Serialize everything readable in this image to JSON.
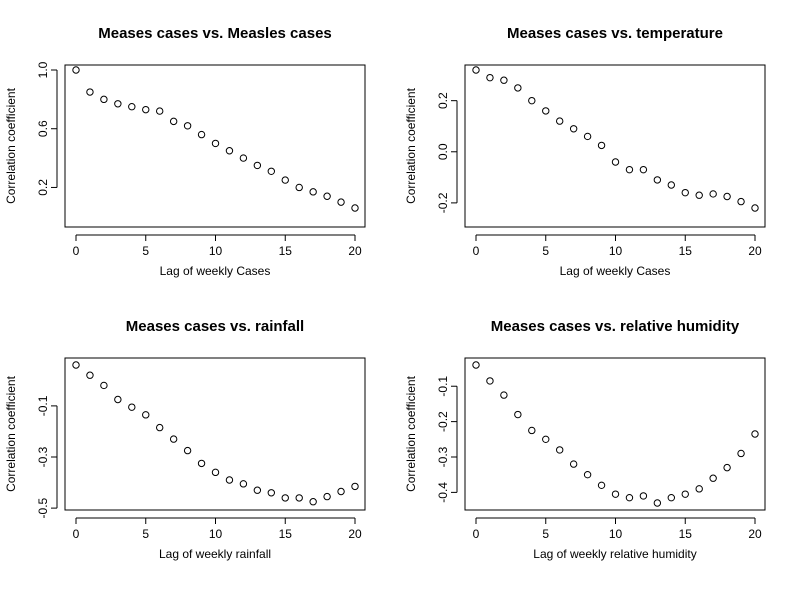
{
  "chart_data": [
    {
      "type": "scatter",
      "title": "Meases cases vs. Measles cases",
      "xlabel": "Lag of weekly Cases",
      "ylabel": "Correlation coefficient",
      "xlim": [
        0,
        20
      ],
      "ylim": [
        0.06,
        1.0
      ],
      "xticks": [
        0,
        5,
        10,
        15,
        20
      ],
      "yticks": [
        0.2,
        0.6,
        1.0
      ],
      "ytick_labels": [
        "0.2",
        "0.6",
        "1.0"
      ],
      "x": [
        0,
        1,
        2,
        3,
        4,
        5,
        6,
        7,
        8,
        9,
        10,
        11,
        12,
        13,
        14,
        15,
        16,
        17,
        18,
        19,
        20
      ],
      "y": [
        1.0,
        0.85,
        0.8,
        0.77,
        0.75,
        0.73,
        0.72,
        0.65,
        0.62,
        0.56,
        0.5,
        0.45,
        0.4,
        0.35,
        0.31,
        0.25,
        0.2,
        0.17,
        0.14,
        0.1,
        0.06
      ]
    },
    {
      "type": "scatter",
      "title": "Meases cases vs. temperature",
      "xlabel": "Lag of weekly Cases",
      "ylabel": "Correlation coefficient",
      "xlim": [
        0,
        20
      ],
      "ylim": [
        -0.22,
        0.32
      ],
      "xticks": [
        0,
        5,
        10,
        15,
        20
      ],
      "yticks": [
        -0.2,
        0.0,
        0.2
      ],
      "ytick_labels": [
        "-0.2",
        "0.0",
        "0.2"
      ],
      "x": [
        0,
        1,
        2,
        3,
        4,
        5,
        6,
        7,
        8,
        9,
        10,
        11,
        12,
        13,
        14,
        15,
        16,
        17,
        18,
        19,
        20
      ],
      "y": [
        0.32,
        0.29,
        0.28,
        0.25,
        0.2,
        0.16,
        0.12,
        0.09,
        0.06,
        0.025,
        -0.04,
        -0.07,
        -0.07,
        -0.11,
        -0.13,
        -0.16,
        -0.17,
        -0.165,
        -0.175,
        -0.195,
        -0.22
      ]
    },
    {
      "type": "scatter",
      "title": "Meases cases vs. rainfall",
      "xlabel": "Lag of weekly  rainfall",
      "ylabel": "Correlation coefficient",
      "xlim": [
        0,
        20
      ],
      "ylim": [
        -0.48,
        0.06
      ],
      "xticks": [
        0,
        5,
        10,
        15,
        20
      ],
      "yticks": [
        -0.5,
        -0.3,
        -0.1
      ],
      "ytick_labels": [
        "-0.5",
        "-0.3",
        "-0.1"
      ],
      "x": [
        0,
        1,
        2,
        3,
        4,
        5,
        6,
        7,
        8,
        9,
        10,
        11,
        12,
        13,
        14,
        15,
        16,
        17,
        18,
        19,
        20
      ],
      "y": [
        0.06,
        0.02,
        -0.02,
        -0.075,
        -0.105,
        -0.135,
        -0.185,
        -0.23,
        -0.275,
        -0.325,
        -0.36,
        -0.39,
        -0.405,
        -0.43,
        -0.44,
        -0.46,
        -0.46,
        -0.475,
        -0.455,
        -0.435,
        -0.415
      ]
    },
    {
      "type": "scatter",
      "title": "Meases cases vs. relative humidity",
      "xlabel": "Lag of weekly relative humidity",
      "ylabel": "Correlation coefficient",
      "xlim": [
        0,
        20
      ],
      "ylim": [
        -0.43,
        -0.04
      ],
      "xticks": [
        0,
        5,
        10,
        15,
        20
      ],
      "yticks": [
        -0.4,
        -0.3,
        -0.2,
        -0.1
      ],
      "ytick_labels": [
        "-0.4",
        "-0.3",
        "-0.2",
        "-0.1"
      ],
      "x": [
        0,
        1,
        2,
        3,
        4,
        5,
        6,
        7,
        8,
        9,
        10,
        11,
        12,
        13,
        14,
        15,
        16,
        17,
        18,
        19,
        20
      ],
      "y": [
        -0.04,
        -0.085,
        -0.125,
        -0.18,
        -0.225,
        -0.25,
        -0.28,
        -0.32,
        -0.35,
        -0.38,
        -0.405,
        -0.415,
        -0.41,
        -0.43,
        -0.415,
        -0.405,
        -0.39,
        -0.36,
        -0.33,
        -0.29,
        -0.235
      ]
    }
  ]
}
